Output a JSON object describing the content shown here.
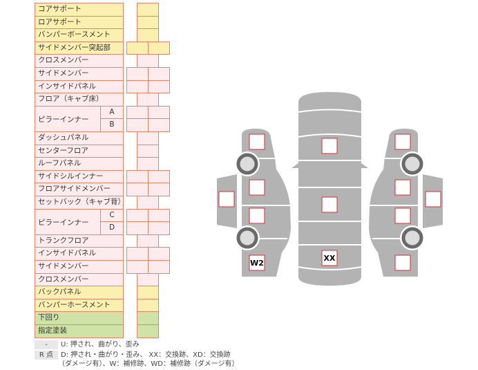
{
  "colors": {
    "yellow": "#fbf0b0",
    "pink": "#fdebee",
    "green": "#cfe3a6",
    "border": "#e0866a",
    "body": "#b3b3b3",
    "marker_border": "#d0303a"
  },
  "rows": [
    {
      "label": "コアサポート",
      "color": "yellow",
      "cells": 1
    },
    {
      "label": "ロアサポート",
      "color": "yellow",
      "cells": 1
    },
    {
      "label": "バンパーボースメント",
      "color": "yellow",
      "cells": 1
    },
    {
      "label": "サイドメンバー突起部",
      "color": "yellow",
      "cells": 2
    },
    {
      "label": "クロスメンバー",
      "color": "pink",
      "cells": 1
    },
    {
      "label": "サイドメンバー",
      "color": "pink",
      "cells": 2
    },
    {
      "label": "インサイドパネル",
      "color": "pink",
      "cells": 2
    },
    {
      "label": "フロア（キャブ床）",
      "color": "pink",
      "cells": 1
    },
    {
      "label": "ピラーインナー",
      "color": "pink",
      "cells": 2,
      "subs": [
        "A",
        "B"
      ]
    },
    {
      "label": "ダッシュパネル",
      "color": "pink",
      "cells": 1
    },
    {
      "label": "センターフロア",
      "color": "pink",
      "cells": 1
    },
    {
      "label": "ルーフパネル",
      "color": "pink",
      "cells": 1
    },
    {
      "label": "サイドシルインナー",
      "color": "pink",
      "cells": 2
    },
    {
      "label": "フロアサイドメンバー",
      "color": "pink",
      "cells": 2
    },
    {
      "label": "セットバック（キャブ背）",
      "color": "pink",
      "cells": 1
    },
    {
      "label": "ピラーインナー",
      "color": "pink",
      "cells": 2,
      "subs": [
        "C",
        "D"
      ]
    },
    {
      "label": "トランクフロア",
      "color": "pink",
      "cells": 1
    },
    {
      "label": "インサイドパネル",
      "color": "pink",
      "cells": 2
    },
    {
      "label": "サイドメンバー",
      "color": "pink",
      "cells": 2
    },
    {
      "label": "クロスメンバー",
      "color": "pink",
      "cells": 1
    },
    {
      "label": "バックパネル",
      "color": "yellow",
      "cells": 1
    },
    {
      "label": "バンパーホースメント",
      "color": "yellow",
      "cells": 1
    },
    {
      "label": "下回り",
      "color": "green",
      "cells": 1
    },
    {
      "label": "指定塗装",
      "color": "green",
      "cells": 1
    }
  ],
  "legend": {
    "key1": "-",
    "text1": "U: 押され、曲がり、歪み",
    "key2": "R 点",
    "text2": "D: 押され・曲がり・歪み、 XX：交換跡、XD：交換跡",
    "text3": "（ダメージ有）、W：補修跡、WD：補修跡（ダメージ有）"
  },
  "markers": [
    {
      "part": "left-front",
      "label": ""
    },
    {
      "part": "left-front-door",
      "label": ""
    },
    {
      "part": "left-rear-door",
      "label": ""
    },
    {
      "part": "left-rear",
      "label": "W2"
    },
    {
      "part": "left-outer",
      "label": ""
    },
    {
      "part": "hood",
      "label": ""
    },
    {
      "part": "roof",
      "label": ""
    },
    {
      "part": "trunk",
      "label": "XX"
    },
    {
      "part": "right-front",
      "label": ""
    },
    {
      "part": "right-front-door",
      "label": ""
    },
    {
      "part": "right-rear-door",
      "label": ""
    },
    {
      "part": "right-rear",
      "label": ""
    },
    {
      "part": "right-outer",
      "label": ""
    }
  ]
}
